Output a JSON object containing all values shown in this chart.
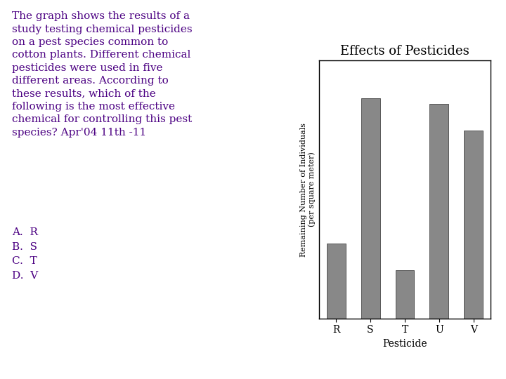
{
  "title": "Effects of Pesticides",
  "categories": [
    "R",
    "S",
    "T",
    "U",
    "V"
  ],
  "values": [
    28,
    82,
    18,
    80,
    70
  ],
  "bar_color": "#888888",
  "xlabel": "Pesticide",
  "ylabel": "Remaining Number of Individuals\n(per square meter)",
  "background_color": "#ffffff",
  "text_block": "The graph shows the results of a\nstudy testing chemical pesticides\non a pest species common to\ncotton plants. Different chemical\npesticides were used in five\ndifferent areas. According to\nthese results, which of the\nfollowing is the most effective\nchemical for controlling this pest\nspecies? Apr'04 11th -11",
  "answer_choices": "A.  R\nB.  S\nC.  T\nD.  V",
  "title_fontsize": 13,
  "label_fontsize": 10,
  "tick_fontsize": 10,
  "text_fontsize": 11,
  "answer_fontsize": 11,
  "text_color": "#4B0082"
}
